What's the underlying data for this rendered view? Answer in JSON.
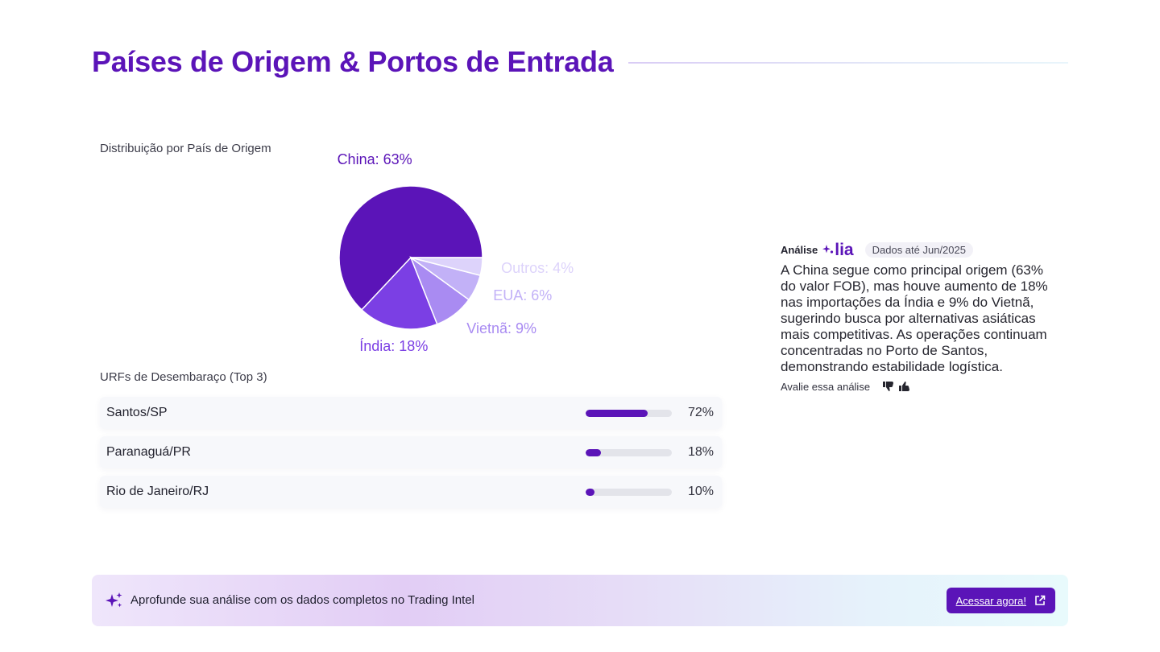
{
  "header": {
    "title": "Países de Origem & Portos de Entrada"
  },
  "sections": {
    "pie_label": "Distribuição por País de Origem",
    "urf_label": "URFs de Desembaraço (Top 3)"
  },
  "colors": {
    "accent": "#5b14b8",
    "slices": [
      "#5b14b8",
      "#7b3fe4",
      "#a98bf2",
      "#c2b1f7",
      "#ddd3fb"
    ],
    "labels": [
      "#5b14b8",
      "#7b3fe4",
      "#a98bf2",
      "#c2b1f7",
      "#ddd3fb"
    ]
  },
  "chart_data": {
    "type": "pie",
    "title": "Distribuição por País de Origem",
    "slices": [
      {
        "name": "China",
        "value": 63,
        "label": "China: 63%"
      },
      {
        "name": "Índia",
        "value": 18,
        "label": "Índia: 18%"
      },
      {
        "name": "Vietnã",
        "value": 9,
        "label": "Vietnã: 9%"
      },
      {
        "name": "EUA",
        "value": 6,
        "label": "EUA: 6%"
      },
      {
        "name": "Outros",
        "value": 4,
        "label": "Outros: 4%"
      }
    ]
  },
  "urfs": [
    {
      "name": "Santos/SP",
      "percent": 72,
      "label": "72%"
    },
    {
      "name": "Paranaguá/PR",
      "percent": 18,
      "label": "18%"
    },
    {
      "name": "Rio de Janeiro/RJ",
      "percent": 10,
      "label": "10%"
    }
  ],
  "analysis": {
    "tag": "Análise",
    "brand_name": "lia",
    "data_badge": "Dados até Jun/2025",
    "text": "A China segue como principal origem (63% do valor FOB), mas houve aumento de 18% nas importações da Índia e 9% do Vietnã, sugerindo busca por alternativas asiáticas mais competitivas. As operações continuam concentradas no Porto de Santos, demonstrando estabilidade logística.",
    "rate_label": "Avalie essa análise"
  },
  "banner": {
    "text": "Aprofunde sua análise com os dados completos no Trading Intel",
    "cta_label": "Acessar agora!"
  }
}
